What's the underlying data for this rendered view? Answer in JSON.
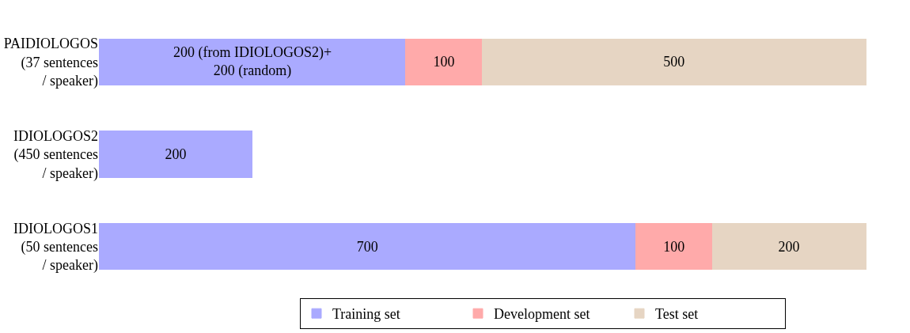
{
  "chart_data": {
    "type": "bar",
    "orientation": "horizontal",
    "stacked": true,
    "annotations": [
      "200 (from IDIOLOGOS2)+\n200 (random)"
    ],
    "categories": [
      "PAIDIOLOGOS\n(37 sentences\n/ speaker)",
      "IDIOLOGOS2\n(450 sentences\n/ speaker)",
      "IDIOLOGOS1\n(50 sentences\n/ speaker)"
    ],
    "series": [
      {
        "name": "Training set",
        "color": "#aaaaff",
        "values": [
          400,
          200,
          700
        ],
        "value_labels": [
          null,
          "200",
          "700"
        ]
      },
      {
        "name": "Development set",
        "color": "#ffaaaa",
        "values": [
          100,
          null,
          100
        ],
        "value_labels": [
          "100",
          null,
          "100"
        ]
      },
      {
        "name": "Test set",
        "color": "#e6d5c3",
        "values": [
          500,
          null,
          200
        ],
        "value_labels": [
          "500",
          null,
          "200"
        ]
      }
    ],
    "legend": "bottom"
  }
}
